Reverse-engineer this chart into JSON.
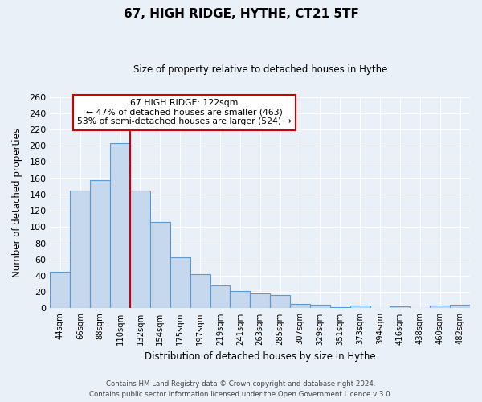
{
  "title": "67, HIGH RIDGE, HYTHE, CT21 5TF",
  "subtitle": "Size of property relative to detached houses in Hythe",
  "xlabel": "Distribution of detached houses by size in Hythe",
  "ylabel": "Number of detached properties",
  "bar_labels": [
    "44sqm",
    "66sqm",
    "88sqm",
    "110sqm",
    "132sqm",
    "154sqm",
    "175sqm",
    "197sqm",
    "219sqm",
    "241sqm",
    "263sqm",
    "285sqm",
    "307sqm",
    "329sqm",
    "351sqm",
    "373sqm",
    "394sqm",
    "416sqm",
    "438sqm",
    "460sqm",
    "482sqm"
  ],
  "bar_values": [
    45,
    145,
    158,
    203,
    145,
    106,
    63,
    42,
    28,
    21,
    18,
    16,
    5,
    4,
    1,
    3,
    0,
    2,
    0,
    3,
    4
  ],
  "bar_color": "#c5d8ed",
  "bar_edge_color": "#5b9bd5",
  "vline_x": 3.5,
  "marker_label": "67 HIGH RIDGE: 122sqm",
  "annotation_line1": "← 47% of detached houses are smaller (463)",
  "annotation_line2": "53% of semi-detached houses are larger (524) →",
  "footer1": "Contains HM Land Registry data © Crown copyright and database right 2024.",
  "footer2": "Contains public sector information licensed under the Open Government Licence v 3.0.",
  "ylim": [
    0,
    260
  ],
  "yticks": [
    0,
    20,
    40,
    60,
    80,
    100,
    120,
    140,
    160,
    180,
    200,
    220,
    240,
    260
  ],
  "box_color": "#cc0000",
  "vline_color": "#cc0000",
  "bg_color": "#eaf0f8"
}
